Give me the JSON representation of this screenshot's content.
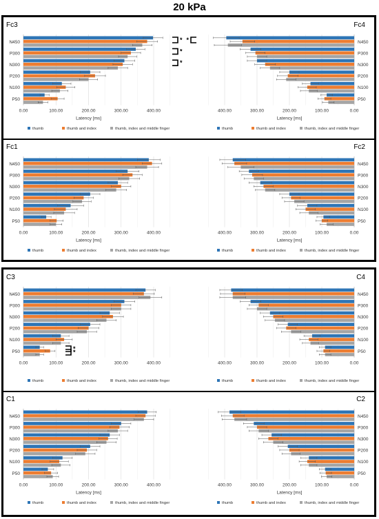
{
  "page_title": "20 kPa",
  "colors": {
    "thumb": "#2E75B6",
    "thumb_index": "#ED7D31",
    "thumb_index_middle": "#A5A5A5"
  },
  "chart_data": [
    {
      "type": "bar",
      "panel": "Fc3",
      "orientation": "horizontal",
      "direction": "left-to-right",
      "categories": [
        "N450",
        "P300",
        "N300",
        "P200",
        "N100",
        "P50"
      ],
      "xlabel": "Latency [ms]",
      "xlim": [
        0,
        450
      ],
      "ticks": [
        "0.00",
        "100.00",
        "200.00",
        "300.00",
        "400.00"
      ],
      "legend": "bottom",
      "series": [
        {
          "name": "thumb",
          "values": [
            398,
            345,
            310,
            205,
            118,
            65
          ],
          "errors": [
            30,
            28,
            32,
            30,
            28,
            14
          ]
        },
        {
          "name": "thumb and index",
          "values": [
            380,
            330,
            305,
            220,
            130,
            105
          ],
          "errors": [
            32,
            30,
            30,
            32,
            28,
            20
          ]
        },
        {
          "name": "thumb, index and middle finger",
          "values": [
            365,
            320,
            290,
            200,
            112,
            60
          ],
          "errors": [
            30,
            28,
            30,
            28,
            25,
            15
          ]
        }
      ],
      "annotations": [
        "*",
        "*",
        "*"
      ]
    },
    {
      "type": "bar",
      "panel": "Fc4",
      "orientation": "horizontal",
      "direction": "right-to-left",
      "categories": [
        "N450",
        "P300",
        "N300",
        "P200",
        "N100",
        "P50"
      ],
      "xlabel": "Latency [ms]",
      "xlim": [
        0,
        450
      ],
      "ticks": [
        "400.00",
        "300.00",
        "200.00",
        "100.00",
        "0.00"
      ],
      "legend": "bottom",
      "series": [
        {
          "name": "thumb",
          "values": [
            395,
            320,
            300,
            200,
            135,
            85
          ],
          "errors": [
            40,
            32,
            30,
            30,
            25,
            18
          ]
        },
        {
          "name": "thumb and index",
          "values": [
            345,
            305,
            275,
            205,
            145,
            92
          ],
          "errors": [
            38,
            30,
            32,
            32,
            28,
            20
          ]
        },
        {
          "name": "thumb, index and middle finger",
          "values": [
            390,
            300,
            260,
            210,
            140,
            80
          ],
          "errors": [
            42,
            30,
            30,
            30,
            26,
            18
          ]
        }
      ],
      "annotations": [
        "*"
      ]
    },
    {
      "type": "bar",
      "panel": "Fc1",
      "orientation": "horizontal",
      "direction": "left-to-right",
      "categories": [
        "N450",
        "P300",
        "N300",
        "P200",
        "N100",
        "P50"
      ],
      "xlabel": "Latency [ms]",
      "xlim": [
        0,
        450
      ],
      "ticks": [
        "0.00",
        "100.00",
        "200.00",
        "300.00",
        "400.00"
      ],
      "legend": "bottom",
      "series": [
        {
          "name": "thumb",
          "values": [
            385,
            320,
            290,
            205,
            145,
            70
          ],
          "errors": [
            35,
            35,
            30,
            30,
            40,
            15
          ]
        },
        {
          "name": "thumb and index",
          "values": [
            395,
            335,
            300,
            185,
            130,
            102
          ],
          "errors": [
            30,
            30,
            30,
            30,
            35,
            20
          ]
        },
        {
          "name": "thumb, index and middle finger",
          "values": [
            380,
            325,
            285,
            180,
            125,
            100
          ],
          "errors": [
            35,
            32,
            32,
            28,
            32,
            18
          ]
        }
      ]
    },
    {
      "type": "bar",
      "panel": "Fc2",
      "orientation": "horizontal",
      "direction": "right-to-left",
      "categories": [
        "N450",
        "P300",
        "N300",
        "P200",
        "N100",
        "P50"
      ],
      "xlabel": "Latency [ms]",
      "xlim": [
        0,
        450
      ],
      "ticks": [
        "400.00",
        "300.00",
        "200.00",
        "100.00",
        "0.00"
      ],
      "legend": "bottom",
      "series": [
        {
          "name": "thumb",
          "values": [
            375,
            325,
            290,
            200,
            145,
            95
          ],
          "errors": [
            40,
            30,
            35,
            30,
            30,
            20
          ]
        },
        {
          "name": "thumb and index",
          "values": [
            370,
            315,
            280,
            195,
            150,
            100
          ],
          "errors": [
            38,
            32,
            30,
            28,
            30,
            18
          ]
        },
        {
          "name": "thumb, index and middle finger",
          "values": [
            350,
            310,
            275,
            185,
            140,
            85
          ],
          "errors": [
            40,
            30,
            30,
            30,
            28,
            20
          ]
        }
      ]
    },
    {
      "type": "bar",
      "panel": "C3",
      "orientation": "horizontal",
      "direction": "left-to-right",
      "categories": [
        "N450",
        "P300",
        "N300",
        "P200",
        "N100",
        "P50"
      ],
      "xlabel": "",
      "xlim": [
        0,
        450
      ],
      "ticks": [
        "0.00",
        "100.00",
        "200.00",
        "300.00",
        "400.00"
      ],
      "legend": "bottom",
      "series": [
        {
          "name": "thumb",
          "values": [
            375,
            310,
            265,
            205,
            115,
            50
          ],
          "errors": [
            30,
            32,
            30,
            30,
            25,
            12
          ]
        },
        {
          "name": "thumb and index",
          "values": [
            370,
            300,
            275,
            200,
            125,
            82
          ],
          "errors": [
            32,
            30,
            32,
            32,
            25,
            15
          ]
        },
        {
          "name": "thumb, index and middle finger",
          "values": [
            390,
            300,
            255,
            195,
            115,
            50
          ],
          "errors": [
            35,
            30,
            30,
            30,
            25,
            12
          ]
        }
      ],
      "annotations": [
        "*",
        "*"
      ]
    },
    {
      "type": "bar",
      "panel": "C4",
      "orientation": "horizontal",
      "direction": "right-to-left",
      "categories": [
        "N450",
        "P300",
        "N300",
        "P200",
        "N100",
        "P50"
      ],
      "xlabel": "",
      "xlim": [
        0,
        450
      ],
      "ticks": [
        "400.00",
        "300.00",
        "200.00",
        "100.00",
        "0.00"
      ],
      "legend": "bottom",
      "series": [
        {
          "name": "thumb",
          "values": [
            380,
            320,
            260,
            205,
            130,
            90
          ],
          "errors": [
            35,
            32,
            30,
            30,
            25,
            18
          ]
        },
        {
          "name": "thumb and index",
          "values": [
            375,
            295,
            250,
            210,
            140,
            95
          ],
          "errors": [
            38,
            30,
            30,
            30,
            28,
            20
          ]
        },
        {
          "name": "thumb, index and middle finger",
          "values": [
            375,
            300,
            245,
            195,
            135,
            90
          ],
          "errors": [
            40,
            30,
            30,
            30,
            25,
            18
          ]
        }
      ]
    },
    {
      "type": "bar",
      "panel": "C1",
      "orientation": "horizontal",
      "direction": "left-to-right",
      "categories": [
        "N450",
        "P300",
        "N300",
        "P200",
        "N100",
        "P50"
      ],
      "xlabel": "Latency [ms]",
      "xlim": [
        0,
        450
      ],
      "ticks": [
        "0.00",
        "100.00",
        "200.00",
        "300.00",
        "400.00"
      ],
      "legend": "bottom",
      "series": [
        {
          "name": "thumb",
          "values": [
            380,
            300,
            265,
            205,
            120,
            75
          ],
          "errors": [
            28,
            30,
            30,
            30,
            30,
            18
          ]
        },
        {
          "name": "thumb and index",
          "values": [
            375,
            295,
            260,
            195,
            110,
            85
          ],
          "errors": [
            30,
            30,
            28,
            30,
            28,
            20
          ]
        },
        {
          "name": "thumb, index and middle finger",
          "values": [
            370,
            290,
            255,
            190,
            115,
            90
          ],
          "errors": [
            30,
            30,
            30,
            30,
            28,
            18
          ]
        }
      ]
    },
    {
      "type": "bar",
      "panel": "C2",
      "orientation": "horizontal",
      "direction": "right-to-left",
      "categories": [
        "N450",
        "P300",
        "N300",
        "P200",
        "N100",
        "P50"
      ],
      "xlabel": "Latency [ms]",
      "xlim": [
        0,
        450
      ],
      "ticks": [
        "400.00",
        "300.00",
        "200.00",
        "100.00",
        "0.00"
      ],
      "legend": "bottom",
      "series": [
        {
          "name": "thumb",
          "values": [
            385,
            310,
            255,
            205,
            140,
            90
          ],
          "errors": [
            35,
            32,
            30,
            30,
            25,
            18
          ]
        },
        {
          "name": "thumb and index",
          "values": [
            375,
            300,
            265,
            200,
            145,
            88
          ],
          "errors": [
            35,
            30,
            30,
            30,
            25,
            18
          ]
        },
        {
          "name": "thumb, index and middle finger",
          "values": [
            370,
            295,
            250,
            195,
            140,
            85
          ],
          "errors": [
            38,
            30,
            30,
            28,
            25,
            16
          ]
        }
      ]
    }
  ]
}
